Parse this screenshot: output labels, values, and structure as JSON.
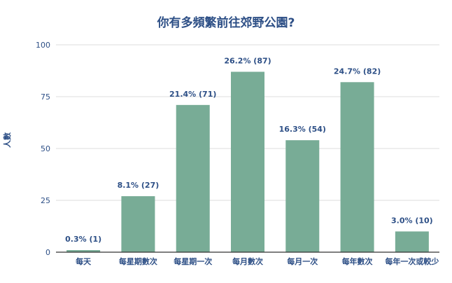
{
  "chart_data": {
    "type": "bar",
    "title": "你有多頻繁前往郊野公園?",
    "xlabel": "",
    "ylabel": "人數",
    "ylim": [
      0,
      100
    ],
    "yticks": [
      0,
      25,
      50,
      75,
      100
    ],
    "categories": [
      "每天",
      "每星期數次",
      "每星期一次",
      "每月數次",
      "每月一次",
      "每年數次",
      "每年一次或較少"
    ],
    "values": [
      1,
      27,
      71,
      87,
      54,
      82,
      10
    ],
    "data_labels": [
      "0.3% (1)",
      "8.1% (27)",
      "21.4% (71)",
      "26.2% (87)",
      "16.3% (54)",
      "24.7% (82)",
      "3.0% (10)"
    ],
    "grid": true,
    "legend": "none",
    "colors": {
      "bar": "#78ac96",
      "title": "#2d4f86",
      "text": "#2d4f86",
      "grid": "#dcdcdc",
      "axis": "#333333"
    }
  }
}
